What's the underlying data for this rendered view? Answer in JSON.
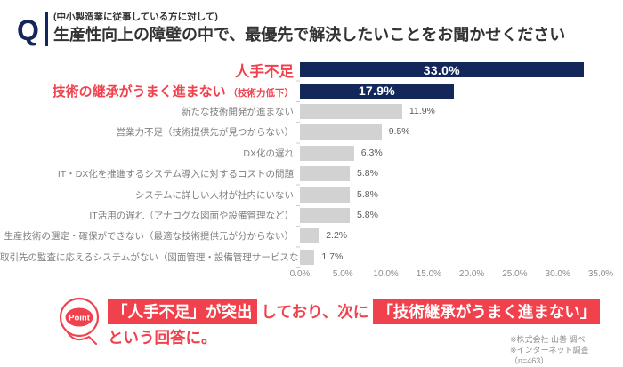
{
  "header": {
    "q_mark": "Q",
    "subtitle": "(中小製造業に従事している方に対して)",
    "title": "生産性向上の障壁の中で、最優先で解決したいことをお聞かせください"
  },
  "chart_data": {
    "type": "bar",
    "orientation": "horizontal",
    "title": "",
    "xlabel": "",
    "ylabel": "",
    "xlim": [
      0,
      35
    ],
    "grid": false,
    "legend": false,
    "categories": [
      "人手不足",
      "技術の継承がうまく進まない",
      "新たな技術開発が進まない",
      "営業力不足（技術提供先が見つからない）",
      "DX化の遅れ",
      "IT・DX化を推進するシステム導入に対するコストの問題",
      "システムに詳しい人材が社内にいない",
      "IT活用の遅れ（アナログな図面や設備管理など）",
      "生産技術の選定・確保ができない（最適な技術提供元が分からない）",
      "取引先の監査に応えるシステムがない（図面管理・設備管理サービスなど）"
    ],
    "category_notes": [
      "",
      "（技術力低下）",
      "",
      "",
      "",
      "",
      "",
      "",
      "",
      ""
    ],
    "values": [
      33.0,
      17.9,
      11.9,
      9.5,
      6.3,
      5.8,
      5.8,
      5.8,
      2.2,
      1.7
    ],
    "value_labels": [
      "33.0%",
      "17.9%",
      "11.9%",
      "9.5%",
      "6.3%",
      "5.8%",
      "5.8%",
      "5.8%",
      "2.2%",
      "1.7%"
    ],
    "emphasized": [
      true,
      true,
      false,
      false,
      false,
      false,
      false,
      false,
      false,
      false
    ],
    "x_ticks": [
      {
        "value": 0,
        "label": "0.0%"
      },
      {
        "value": 5,
        "label": "5.0%"
      },
      {
        "value": 10,
        "label": "10.0%"
      },
      {
        "value": 15,
        "label": "15.0%"
      },
      {
        "value": 20,
        "label": "20.0%"
      },
      {
        "value": 25,
        "label": "25.0%"
      },
      {
        "value": 30,
        "label": "30.0%"
      },
      {
        "value": 35,
        "label": "35.0%"
      }
    ],
    "colors": {
      "emphasis_bar": "#14275b",
      "bar": "#d2d2d2",
      "emphasis_label": "#f0414d",
      "label": "#7f7f7f",
      "value_inside": "#ffffff",
      "value_outside": "#595959"
    }
  },
  "point": {
    "badge": "Point",
    "accent_color": "#f0414d",
    "segments": [
      {
        "text": "「人手不足」が突出",
        "highlight": true
      },
      {
        "text": "しており、次に",
        "highlight": false
      },
      {
        "text": "「技術継承がうまく進まない」",
        "highlight": true
      }
    ],
    "line2": "という回答に。"
  },
  "footnotes": [
    "※株式会社 山善 調べ",
    "※インターネット調査（n=463）"
  ]
}
